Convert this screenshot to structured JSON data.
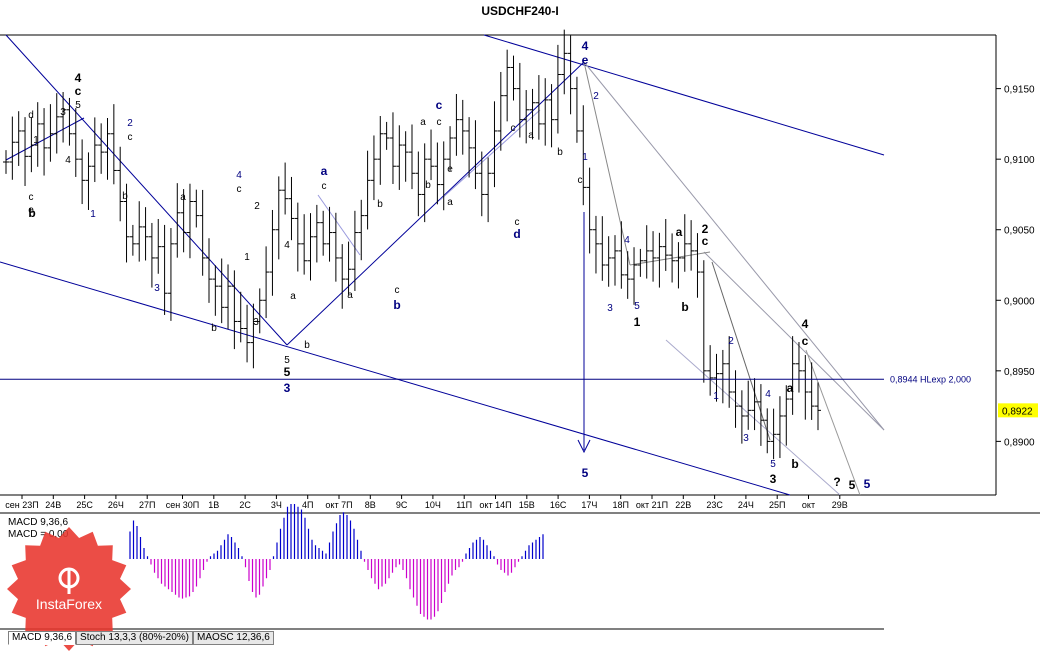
{
  "title": "USDCHF240-I",
  "price_axis": {
    "ticks": [
      "0,9150",
      "0,9100",
      "0,9050",
      "0,9000",
      "0,8950",
      "0,8900"
    ],
    "current_price": "0,8922",
    "current_price_color": "#ffff00"
  },
  "hline": {
    "label": "0,8944 HLexp 2,000",
    "value": 0.8944,
    "color": "#000080"
  },
  "time_axis": [
    "сен 23П",
    "24В",
    "25С",
    "26Ч",
    "27П",
    "сен 30П",
    "1В",
    "2С",
    "3Ч",
    "4П",
    "окт 7П",
    "8В",
    "9С",
    "10Ч",
    "11П",
    "окт 14П",
    "15В",
    "16С",
    "17Ч",
    "18П",
    "окт 21П",
    "22В",
    "23С",
    "24Ч",
    "25П",
    "окт",
    "29В"
  ],
  "indicator": {
    "label1": "MACD 9,36,6",
    "label2": "MACD = 0,00",
    "values": [
      0.5,
      0.7,
      0.6,
      0.4,
      0.2,
      0.05,
      -0.1,
      -0.25,
      -0.35,
      -0.45,
      -0.5,
      -0.55,
      -0.6,
      -0.65,
      -0.7,
      -0.72,
      -0.7,
      -0.68,
      -0.6,
      -0.5,
      -0.35,
      -0.2,
      -0.05,
      0.05,
      0.1,
      0.15,
      0.25,
      0.35,
      0.45,
      0.4,
      0.3,
      0.2,
      0.05,
      -0.15,
      -0.4,
      -0.6,
      -0.7,
      -0.65,
      -0.5,
      -0.35,
      -0.2,
      0.05,
      0.3,
      0.55,
      0.75,
      0.95,
      1.0,
      1.0,
      0.95,
      0.9,
      0.75,
      0.55,
      0.35,
      0.25,
      0.2,
      0.15,
      0.1,
      0.3,
      0.5,
      0.65,
      0.8,
      0.85,
      0.8,
      0.7,
      0.55,
      0.35,
      0.15,
      -0.05,
      -0.2,
      -0.35,
      -0.45,
      -0.55,
      -0.5,
      -0.45,
      -0.35,
      -0.25,
      -0.15,
      -0.1,
      -0.2,
      -0.35,
      -0.55,
      -0.7,
      -0.85,
      -1.0,
      -1.05,
      -1.1,
      -1.1,
      -1.05,
      -0.95,
      -0.8,
      -0.6,
      -0.45,
      -0.3,
      -0.2,
      -0.15,
      -0.05,
      0.1,
      0.2,
      0.3,
      0.35,
      0.4,
      0.35,
      0.25,
      0.15,
      0.05,
      -0.1,
      -0.2,
      -0.25,
      -0.3,
      -0.25,
      -0.15,
      -0.05,
      0.05,
      0.15,
      0.25,
      0.3,
      0.35,
      0.4,
      0.45
    ],
    "pos_color": "#0000cc",
    "neg_color": "#cc00cc"
  },
  "tabs": [
    "MACD 9,36,6",
    "Stoch 13,3,3 (80%-20%)",
    "MAOSC 12,36,6"
  ],
  "logo_text": "InstaForex",
  "wave_labels": [
    {
      "t": "4",
      "c": "#000000",
      "b": true
    },
    {
      "t": "c",
      "c": "#000000",
      "b": true
    },
    {
      "t": "5",
      "c": "#000000",
      "b": false
    },
    {
      "t": "3",
      "c": "#000000",
      "b": false
    },
    {
      "t": "2",
      "c": "#000080",
      "b": false
    },
    {
      "t": "c",
      "c": "#000000",
      "b": false
    },
    {
      "t": "d",
      "c": "#000000",
      "b": false
    },
    {
      "t": "1",
      "c": "#000000",
      "b": false
    },
    {
      "t": "4",
      "c": "#000000",
      "b": false
    },
    {
      "t": "c",
      "c": "#000000",
      "b": false
    },
    {
      "t": "e",
      "c": "#000000",
      "b": false
    },
    {
      "t": "b",
      "c": "#000000",
      "b": true
    },
    {
      "t": "b",
      "c": "#000000",
      "b": false
    },
    {
      "t": "1",
      "c": "#000080",
      "b": false
    },
    {
      "t": "a",
      "c": "#000000",
      "b": false
    },
    {
      "t": "4",
      "c": "#000080",
      "b": false
    },
    {
      "t": "c",
      "c": "#000000",
      "b": false
    },
    {
      "t": "2",
      "c": "#000000",
      "b": false
    },
    {
      "t": "1",
      "c": "#000000",
      "b": false
    },
    {
      "t": "3",
      "c": "#000080",
      "b": false
    },
    {
      "t": "b",
      "c": "#000000",
      "b": false
    },
    {
      "t": "3",
      "c": "#000000",
      "b": false
    },
    {
      "t": "4",
      "c": "#000000",
      "b": false
    },
    {
      "t": "a",
      "c": "#000000",
      "b": false
    },
    {
      "t": "5",
      "c": "#000000",
      "b": false
    },
    {
      "t": "b",
      "c": "#000000",
      "b": false
    },
    {
      "t": "5",
      "c": "#000000",
      "b": true
    },
    {
      "t": "3",
      "c": "#000080",
      "b": true
    },
    {
      "t": "a",
      "c": "#000080",
      "b": true
    },
    {
      "t": "c",
      "c": "#000000",
      "b": false
    },
    {
      "t": "a",
      "c": "#000000",
      "b": false
    },
    {
      "t": "b",
      "c": "#000000",
      "b": false
    },
    {
      "t": "c",
      "c": "#000000",
      "b": false
    },
    {
      "t": "b",
      "c": "#000080",
      "b": true
    },
    {
      "t": "c",
      "c": "#000080",
      "b": true
    },
    {
      "t": "a",
      "c": "#000000",
      "b": false
    },
    {
      "t": "c",
      "c": "#000000",
      "b": false
    },
    {
      "t": "e",
      "c": "#000000",
      "b": false
    },
    {
      "t": "b",
      "c": "#000000",
      "b": false
    },
    {
      "t": "a",
      "c": "#000000",
      "b": false
    },
    {
      "t": "c",
      "c": "#000000",
      "b": false
    },
    {
      "t": "d",
      "c": "#000080",
      "b": true
    },
    {
      "t": "c",
      "c": "#000000",
      "b": false
    },
    {
      "t": "a",
      "c": "#000000",
      "b": false
    },
    {
      "t": "b",
      "c": "#000000",
      "b": false
    },
    {
      "t": "c",
      "c": "#000000",
      "b": false
    },
    {
      "t": "4",
      "c": "#000080",
      "b": true
    },
    {
      "t": "e",
      "c": "#000080",
      "b": true
    },
    {
      "t": "2",
      "c": "#000080",
      "b": false
    },
    {
      "t": "1",
      "c": "#000080",
      "b": false
    },
    {
      "t": "5",
      "c": "#000080",
      "b": true
    },
    {
      "t": "4",
      "c": "#000080",
      "b": false
    },
    {
      "t": "5",
      "c": "#000080",
      "b": false
    },
    {
      "t": "3",
      "c": "#000080",
      "b": false
    },
    {
      "t": "1",
      "c": "#000000",
      "b": true
    },
    {
      "t": "a",
      "c": "#000000",
      "b": true
    },
    {
      "t": "b",
      "c": "#000000",
      "b": true
    },
    {
      "t": "2",
      "c": "#000000",
      "b": true
    },
    {
      "t": "c",
      "c": "#000000",
      "b": true
    },
    {
      "t": "2",
      "c": "#000080",
      "b": false
    },
    {
      "t": "1",
      "c": "#000080",
      "b": false
    },
    {
      "t": "4",
      "c": "#000080",
      "b": false
    },
    {
      "t": "3",
      "c": "#000080",
      "b": false
    },
    {
      "t": "5",
      "c": "#000080",
      "b": false
    },
    {
      "t": "3",
      "c": "#000000",
      "b": true
    },
    {
      "t": "a",
      "c": "#000000",
      "b": true
    },
    {
      "t": "b",
      "c": "#000000",
      "b": true
    },
    {
      "t": "4",
      "c": "#000000",
      "b": true
    },
    {
      "t": "c",
      "c": "#000000",
      "b": true
    },
    {
      "t": "?",
      "c": "#000000",
      "b": true
    },
    {
      "t": "5",
      "c": "#000000",
      "b": true
    },
    {
      "t": "5",
      "c": "#000080",
      "b": true
    }
  ],
  "chart_data": {
    "type": "ohlc",
    "title": "USDCHF240-I",
    "ylim": [
      0.8862,
      0.9188
    ],
    "y_ticks": [
      0.915,
      0.91,
      0.905,
      0.9,
      0.895,
      0.89
    ],
    "close_path": [
      0.9098,
      0.9112,
      0.912,
      0.9102,
      0.911,
      0.9125,
      0.9108,
      0.9118,
      0.913,
      0.9135,
      0.9118,
      0.91,
      0.9085,
      0.9095,
      0.911,
      0.9105,
      0.9118,
      0.9092,
      0.907,
      0.9045,
      0.904,
      0.9052,
      0.9045,
      0.903,
      0.9038,
      0.9005,
      0.904,
      0.9062,
      0.9048,
      0.907,
      0.906,
      0.903,
      0.9015,
      0.901,
      0.8995,
      0.901,
      0.8985,
      0.898,
      0.897,
      0.8985,
      0.9,
      0.902,
      0.905,
      0.9078,
      0.9072,
      0.9058,
      0.904,
      0.9028,
      0.9045,
      0.9055,
      0.904,
      0.9048,
      0.903,
      0.9015,
      0.9022,
      0.9048,
      0.906,
      0.9085,
      0.91,
      0.9118,
      0.9115,
      0.9095,
      0.911,
      0.9105,
      0.909,
      0.9075,
      0.91,
      0.9095,
      0.9082,
      0.91,
      0.9115,
      0.9128,
      0.912,
      0.9108,
      0.909,
      0.9075,
      0.909,
      0.912,
      0.9145,
      0.9165,
      0.915,
      0.9128,
      0.9135,
      0.914,
      0.9125,
      0.9142,
      0.9128,
      0.916,
      0.9175,
      0.915,
      0.912,
      0.908,
      0.905,
      0.904,
      0.9025,
      0.903,
      0.9035,
      0.9018,
      0.9015,
      0.9025,
      0.9028,
      0.9035,
      0.903,
      0.9038,
      0.9032,
      0.9028,
      0.903,
      0.904,
      0.9035,
      0.902,
      0.895,
      0.8945,
      0.8948,
      0.8955,
      0.8935,
      0.8925,
      0.8918,
      0.8922,
      0.8928,
      0.8915,
      0.89,
      0.8905,
      0.8918,
      0.893,
      0.8955,
      0.895,
      0.8935,
      0.8925,
      0.8922
    ],
    "range": 0.0028,
    "x_labels": [
      "сен 23П",
      "24В",
      "25С",
      "26Ч",
      "27П",
      "сен 30П",
      "1В",
      "2С",
      "3Ч",
      "4П",
      "окт 7П",
      "8В",
      "9С",
      "10Ч",
      "11П",
      "окт 14П",
      "15В",
      "16С",
      "17Ч",
      "18П",
      "окт 21П",
      "22В",
      "23С",
      "24Ч",
      "25П",
      "окт",
      "29В"
    ],
    "hline": 0.8944
  }
}
